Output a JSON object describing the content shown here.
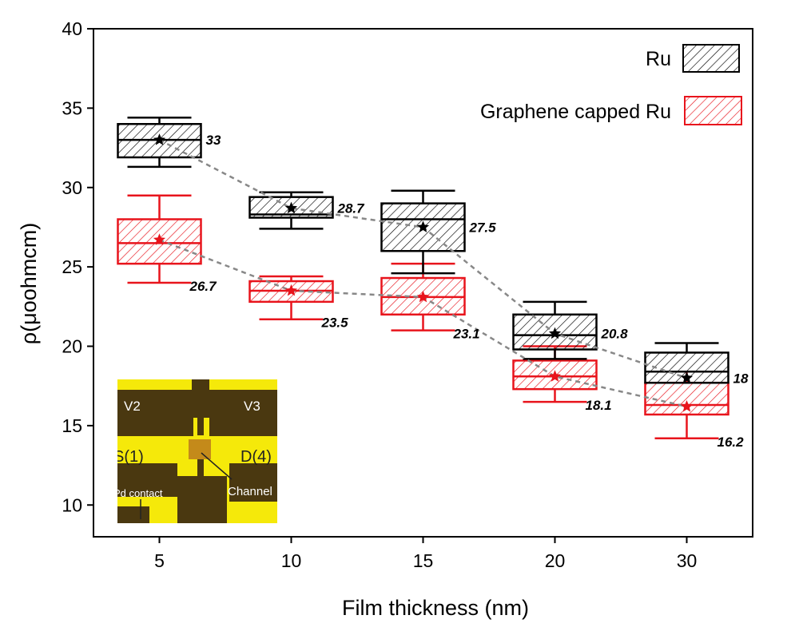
{
  "chart_data": {
    "type": "box",
    "title": "",
    "xlabel": "Film thickness (nm)",
    "ylabel": "ρ(μοohmcm)",
    "categories": [
      "5",
      "10",
      "15",
      "20",
      "30"
    ],
    "ylim": [
      8,
      40
    ],
    "yticks": [
      10,
      15,
      20,
      25,
      30,
      35,
      40
    ],
    "grid": false,
    "legend_position": "top-right",
    "series": [
      {
        "name": "Ru",
        "color": "#000000",
        "whisker_low": [
          31.3,
          27.4,
          24.6,
          19.2,
          17.7
        ],
        "q1": [
          31.9,
          28.1,
          26.0,
          19.8,
          17.7
        ],
        "median": [
          33.0,
          28.3,
          28.0,
          20.7,
          18.4
        ],
        "q3": [
          34.0,
          29.4,
          29.0,
          22.0,
          19.6
        ],
        "whisker_high": [
          34.4,
          29.7,
          29.8,
          22.8,
          20.2
        ],
        "mean": [
          33,
          28.7,
          27.5,
          20.8,
          18
        ],
        "mean_labels": [
          "33",
          "28.7",
          "27.5",
          "20.8",
          "18"
        ]
      },
      {
        "name": "Graphene capped Ru",
        "color": "#e8141c",
        "whisker_low": [
          24.0,
          21.7,
          21.0,
          16.5,
          14.2
        ],
        "q1": [
          25.2,
          22.8,
          22.0,
          17.3,
          15.7
        ],
        "median": [
          26.5,
          23.5,
          23.1,
          18.1,
          16.3
        ],
        "q3": [
          28.0,
          24.1,
          24.3,
          19.1,
          17.7
        ],
        "whisker_high": [
          29.5,
          24.4,
          25.2,
          20.0,
          18.4
        ],
        "mean": [
          26.7,
          23.5,
          23.1,
          18.1,
          16.2
        ],
        "mean_labels": [
          "26.7",
          "23.5",
          "23.1",
          "18.1",
          "16.2"
        ]
      }
    ],
    "inset": {
      "labels": [
        "V2",
        "V3",
        "S(1)",
        "D(4)",
        "Pd contact",
        "Channel"
      ],
      "colors": {
        "metal": "#f5e90a",
        "substrate": "#4a3810",
        "channel": "#c48a1a"
      }
    }
  }
}
